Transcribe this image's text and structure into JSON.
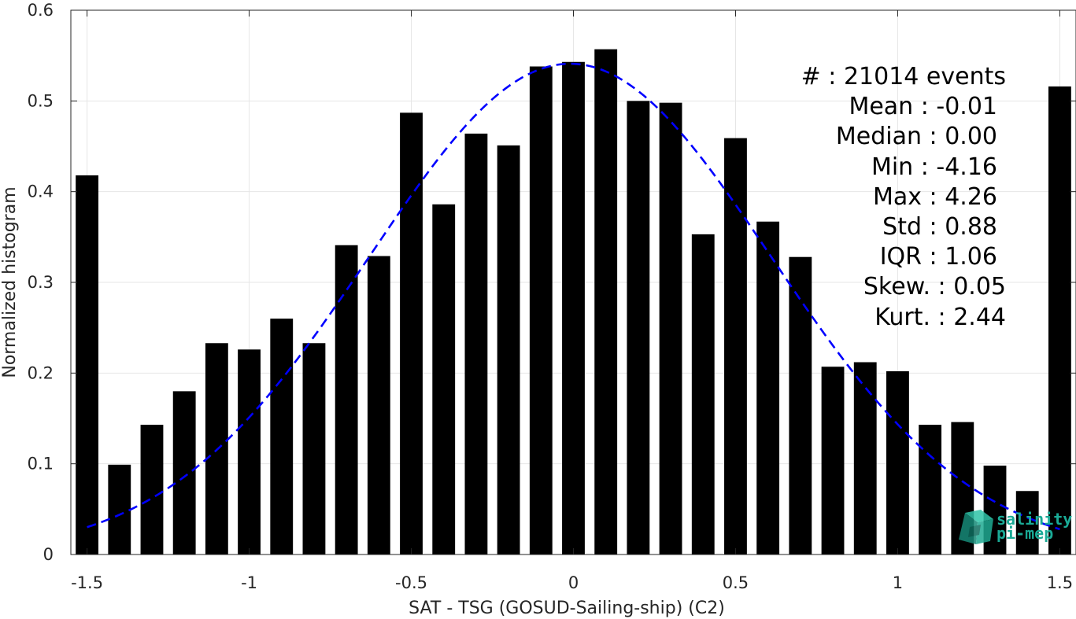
{
  "chart_data": {
    "type": "bar",
    "xlabel": "SAT - TSG (GOSUD-Sailing-ship) (C2)",
    "ylabel": "Normalized histogram",
    "xlim": [
      -1.55,
      1.55
    ],
    "ylim": [
      0,
      0.6
    ],
    "xticks": [
      -1.5,
      -1,
      -0.5,
      0,
      0.5,
      1,
      1.5
    ],
    "xtick_labels": [
      "-1.5",
      "-1",
      "-0.5",
      "0",
      "0.5",
      "1",
      "1.5"
    ],
    "yticks": [
      0,
      0.1,
      0.2,
      0.3,
      0.4,
      0.5,
      0.6
    ],
    "ytick_labels": [
      "0",
      "0.1",
      "0.2",
      "0.3",
      "0.4",
      "0.5",
      "0.6"
    ],
    "grid": true,
    "bar_width": 0.07,
    "x": [
      -1.5,
      -1.4,
      -1.3,
      -1.2,
      -1.1,
      -1.0,
      -0.9,
      -0.8,
      -0.7,
      -0.6,
      -0.5,
      -0.4,
      -0.3,
      -0.2,
      -0.1,
      0.0,
      0.1,
      0.2,
      0.3,
      0.4,
      0.5,
      0.6,
      0.7,
      0.8,
      0.9,
      1.0,
      1.1,
      1.2,
      1.3,
      1.4,
      1.5
    ],
    "values": [
      0.418,
      0.099,
      0.143,
      0.18,
      0.233,
      0.226,
      0.26,
      0.233,
      0.341,
      0.329,
      0.487,
      0.386,
      0.464,
      0.451,
      0.538,
      0.543,
      0.557,
      0.5,
      0.498,
      0.353,
      0.459,
      0.367,
      0.328,
      0.207,
      0.212,
      0.202,
      0.143,
      0.146,
      0.098,
      0.07,
      0.516
    ],
    "fit": {
      "type": "gaussian",
      "style": "dashed",
      "color": "#0000ff",
      "peak": 0.541,
      "center": -0.01,
      "sigma": 0.62,
      "x_range": [
        -1.5,
        1.5
      ]
    },
    "bar_color": "#000000",
    "stats": [
      {
        "label": "#  : 21014 events"
      },
      {
        "label": "Mean : -0.01"
      },
      {
        "label": "Median : 0.00"
      },
      {
        "label": "Min : -4.16"
      },
      {
        "label": "Max : 4.26"
      },
      {
        "label": "Std : 0.88"
      },
      {
        "label": "IQR : 1.06"
      },
      {
        "label": "Skew. : 0.05"
      },
      {
        "label": "Kurt. : 2.44"
      }
    ]
  },
  "logo": {
    "line1": "salinity",
    "line2": "pi-mep",
    "color": "#1aaa96"
  }
}
